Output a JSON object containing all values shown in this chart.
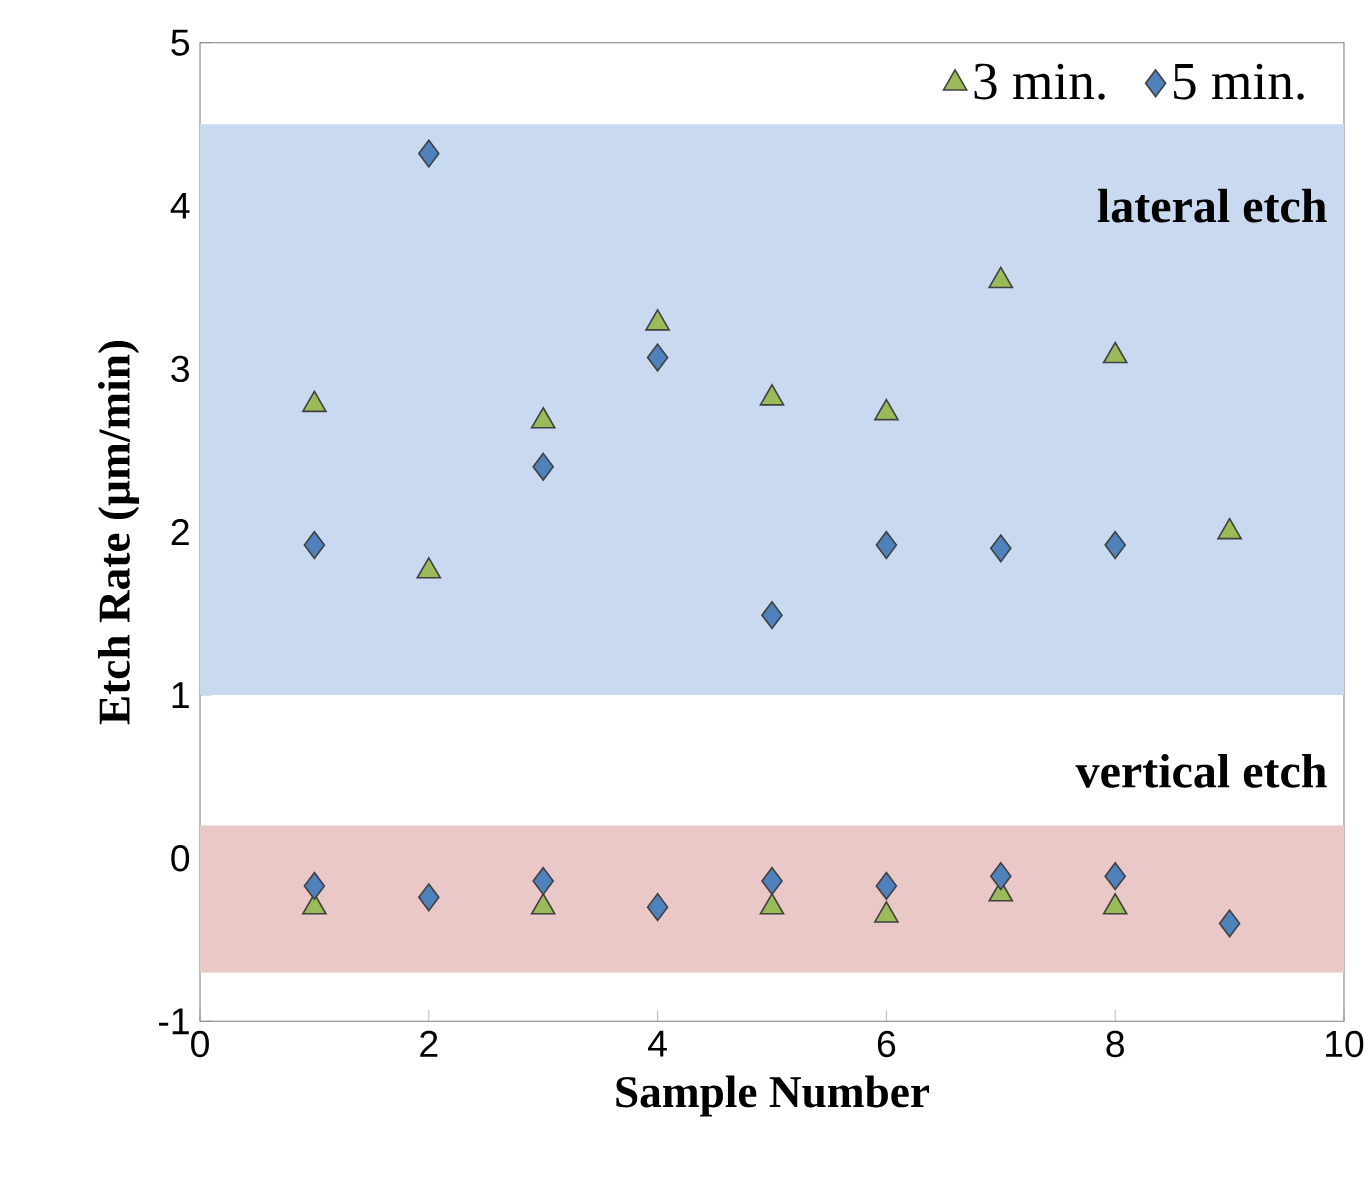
{
  "chart_data": {
    "type": "scatter",
    "xlabel": "Sample Number",
    "ylabel": "Etch Rate (µm/min)",
    "xlim": [
      0,
      10
    ],
    "ylim": [
      -1,
      5
    ],
    "xticks": [
      0,
      2,
      4,
      6,
      8,
      10
    ],
    "yticks": [
      -1,
      0,
      1,
      2,
      3,
      4,
      5
    ],
    "grid": false,
    "legend": "top right",
    "bands": [
      {
        "axis": "y",
        "from": 1,
        "to": 4.5,
        "label": "lateral etch",
        "color": "#c9daf0"
      },
      {
        "axis": "y",
        "from": -0.7,
        "to": 0.2,
        "label": "vertical etch",
        "color": "#ebc8c8"
      }
    ],
    "series": [
      {
        "name": "3 min.",
        "color": "#9bbb59",
        "marker": "triangle",
        "x": [
          1,
          2,
          3,
          4,
          5,
          6,
          7,
          8,
          9,
          1,
          3,
          4,
          5,
          6,
          7,
          8
        ],
        "values": [
          2.78,
          1.76,
          2.68,
          3.28,
          2.82,
          2.73,
          3.54,
          3.08,
          2.0,
          -0.3,
          -0.3,
          null,
          -0.3,
          -0.35,
          -0.22,
          -0.3
        ]
      },
      {
        "name": "5 min.",
        "color": "#4f81bd",
        "marker": "diamond",
        "x": [
          1,
          2,
          3,
          4,
          5,
          6,
          7,
          8,
          1,
          2,
          3,
          4,
          5,
          6,
          7,
          8,
          9
        ],
        "values": [
          1.92,
          4.32,
          2.4,
          3.07,
          1.49,
          1.92,
          1.9,
          1.92,
          -0.17,
          -0.24,
          -0.14,
          -0.3,
          -0.14,
          -0.17,
          -0.11,
          -0.11,
          -0.4
        ]
      }
    ]
  }
}
